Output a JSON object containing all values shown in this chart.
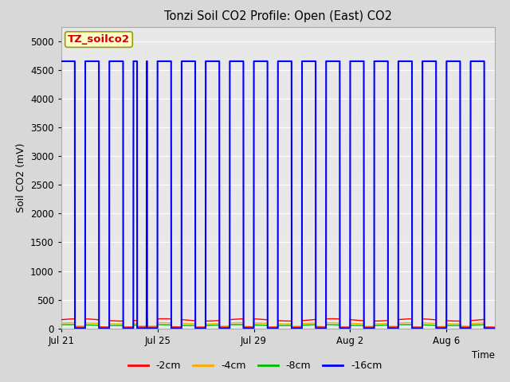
{
  "title": "Tonzi Soil CO2 Profile: Open (East) CO2",
  "ylabel": "Soil CO2 (mV)",
  "xlabel": "Time",
  "annotation_label": "TZ_soilco2",
  "annotation_color": "#cc0000",
  "annotation_bg": "#ffffcc",
  "annotation_border": "#999900",
  "ylim": [
    0,
    5250
  ],
  "yticks": [
    0,
    500,
    1000,
    1500,
    2000,
    2500,
    3000,
    3500,
    4000,
    4500,
    5000
  ],
  "xtick_labels": [
    "Jul 21",
    "Jul 25",
    "Jul 29",
    "Aug 2",
    "Aug 6"
  ],
  "xtick_days": [
    0,
    4,
    8,
    12,
    16
  ],
  "total_days": 18,
  "bg_color": "#d8d8d8",
  "plot_bg_color": "#e8e8e8",
  "grid_color": "#ffffff",
  "line_colors": {
    "-2cm": "#ff0000",
    "-4cm": "#ffaa00",
    "-8cm": "#00bb00",
    "-16cm": "#0000ff"
  },
  "line_widths": {
    "-2cm": 1.0,
    "-4cm": 1.0,
    "-8cm": 1.0,
    "-16cm": 1.5
  },
  "blue_high": 4650,
  "blue_low": 5,
  "red_high": 150,
  "red_low": 30,
  "orange_high": 90,
  "orange_low": 20,
  "green_high": 60,
  "green_low": 10
}
